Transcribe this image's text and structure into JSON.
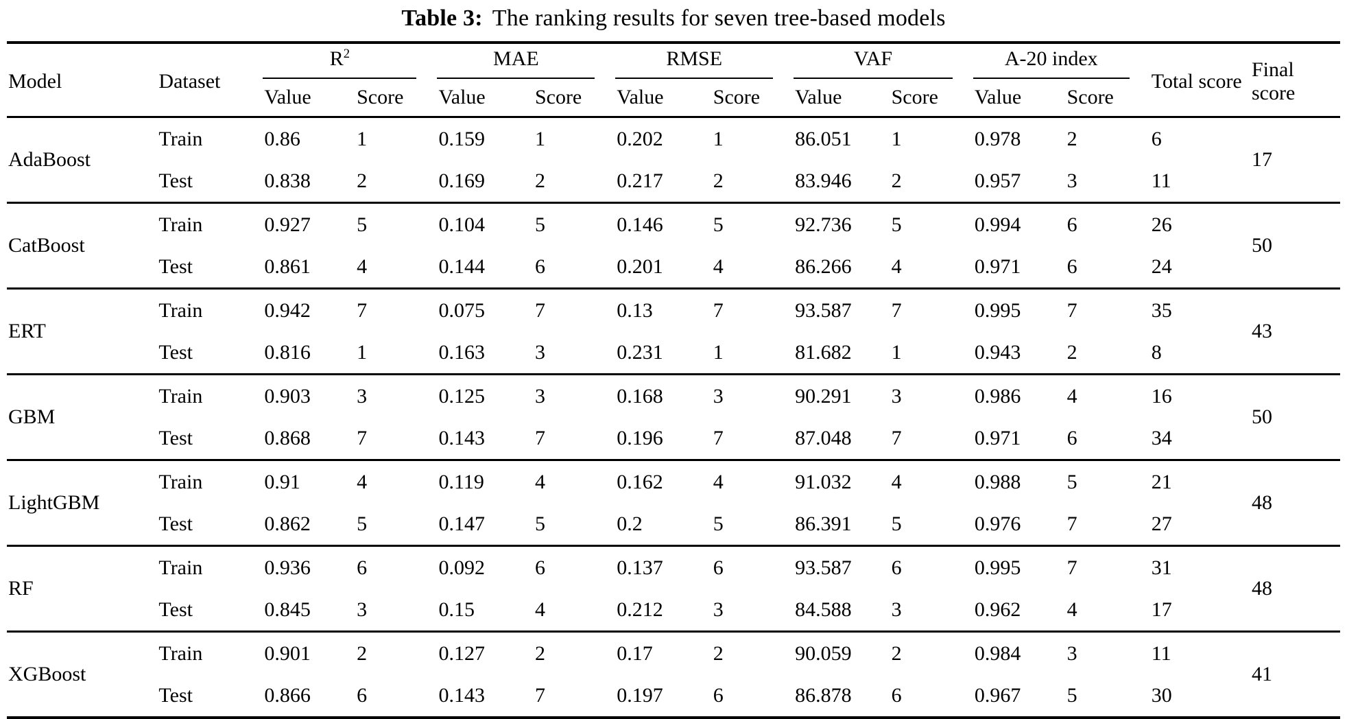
{
  "title": {
    "label": "Table 3:",
    "text": "The ranking results for seven tree-based models"
  },
  "table": {
    "header": {
      "model": "Model",
      "dataset": "Dataset",
      "metrics": [
        {
          "label": "R",
          "sup": "2"
        },
        {
          "label": "MAE",
          "sup": ""
        },
        {
          "label": "RMSE",
          "sup": ""
        },
        {
          "label": "VAF",
          "sup": ""
        },
        {
          "label": "A-20 index",
          "sup": ""
        }
      ],
      "value": "Value",
      "score": "Score",
      "total": "Total score",
      "final": "Final score"
    },
    "models": [
      {
        "name": "AdaBoost",
        "final_score": "17",
        "rows": [
          {
            "dataset": "Train",
            "values": [
              "0.86",
              "1",
              "0.159",
              "1",
              "0.202",
              "1",
              "86.051",
              "1",
              "0.978",
              "2",
              "6"
            ]
          },
          {
            "dataset": "Test",
            "values": [
              "0.838",
              "2",
              "0.169",
              "2",
              "0.217",
              "2",
              "83.946",
              "2",
              "0.957",
              "3",
              "11"
            ]
          }
        ]
      },
      {
        "name": "CatBoost",
        "final_score": "50",
        "rows": [
          {
            "dataset": "Train",
            "values": [
              "0.927",
              "5",
              "0.104",
              "5",
              "0.146",
              "5",
              "92.736",
              "5",
              "0.994",
              "6",
              "26"
            ]
          },
          {
            "dataset": "Test",
            "values": [
              "0.861",
              "4",
              "0.144",
              "6",
              "0.201",
              "4",
              "86.266",
              "4",
              "0.971",
              "6",
              "24"
            ]
          }
        ]
      },
      {
        "name": "ERT",
        "final_score": "43",
        "rows": [
          {
            "dataset": "Train",
            "values": [
              "0.942",
              "7",
              "0.075",
              "7",
              "0.13",
              "7",
              "93.587",
              "7",
              "0.995",
              "7",
              "35"
            ]
          },
          {
            "dataset": "Test",
            "values": [
              "0.816",
              "1",
              "0.163",
              "3",
              "0.231",
              "1",
              "81.682",
              "1",
              "0.943",
              "2",
              "8"
            ]
          }
        ]
      },
      {
        "name": "GBM",
        "final_score": "50",
        "rows": [
          {
            "dataset": "Train",
            "values": [
              "0.903",
              "3",
              "0.125",
              "3",
              "0.168",
              "3",
              "90.291",
              "3",
              "0.986",
              "4",
              "16"
            ]
          },
          {
            "dataset": "Test",
            "values": [
              "0.868",
              "7",
              "0.143",
              "7",
              "0.196",
              "7",
              "87.048",
              "7",
              "0.971",
              "6",
              "34"
            ]
          }
        ]
      },
      {
        "name": "LightGBM",
        "final_score": "48",
        "rows": [
          {
            "dataset": "Train",
            "values": [
              "0.91",
              "4",
              "0.119",
              "4",
              "0.162",
              "4",
              "91.032",
              "4",
              "0.988",
              "5",
              "21"
            ]
          },
          {
            "dataset": "Test",
            "values": [
              "0.862",
              "5",
              "0.147",
              "5",
              "0.2",
              "5",
              "86.391",
              "5",
              "0.976",
              "7",
              "27"
            ]
          }
        ]
      },
      {
        "name": "RF",
        "final_score": "48",
        "rows": [
          {
            "dataset": "Train",
            "values": [
              "0.936",
              "6",
              "0.092",
              "6",
              "0.137",
              "6",
              "93.587",
              "6",
              "0.995",
              "7",
              "31"
            ]
          },
          {
            "dataset": "Test",
            "values": [
              "0.845",
              "3",
              "0.15",
              "4",
              "0.212",
              "3",
              "84.588",
              "3",
              "0.962",
              "4",
              "17"
            ]
          }
        ]
      },
      {
        "name": "XGBoost",
        "final_score": "41",
        "rows": [
          {
            "dataset": "Train",
            "values": [
              "0.901",
              "2",
              "0.127",
              "2",
              "0.17",
              "2",
              "90.059",
              "2",
              "0.984",
              "3",
              "11"
            ]
          },
          {
            "dataset": "Test",
            "values": [
              "0.866",
              "6",
              "0.143",
              "7",
              "0.197",
              "6",
              "86.878",
              "6",
              "0.967",
              "5",
              "30"
            ]
          }
        ]
      }
    ]
  }
}
